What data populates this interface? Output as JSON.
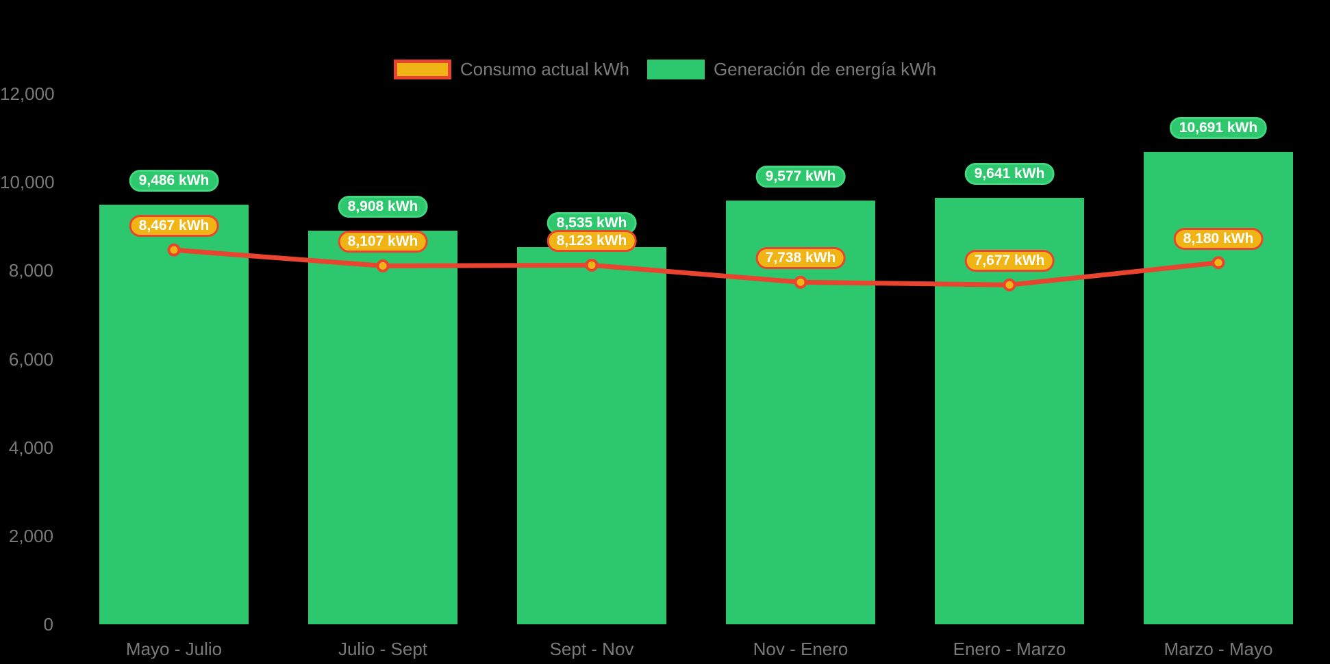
{
  "legend": {
    "position": "top"
  },
  "chart_data": {
    "type": "bar",
    "combo": "bar series with overlaid line series",
    "title": "",
    "categories": [
      "Mayo - Julio",
      "Julio - Sept",
      "Sept - Nov",
      "Nov - Enero",
      "Enero - Marzo",
      "Marzo - Mayo"
    ],
    "series": [
      {
        "name": "Consumo actual kWh",
        "type": "line",
        "color": "#E84430",
        "marker_fill": "#F0B414",
        "values": [
          8467,
          8107,
          8123,
          7738,
          7677,
          8180
        ],
        "data_labels": [
          "8,467 kWh",
          "8,107 kWh",
          "8,123 kWh",
          "7,738 kWh",
          "7,677 kWh",
          "8,180 kWh"
        ]
      },
      {
        "name": "Generación de energía kWh",
        "type": "bar",
        "color": "#2DC86E",
        "values": [
          9486,
          8908,
          8535,
          9577,
          9641,
          10691
        ],
        "data_labels": [
          "9,486 kWh",
          "8,908 kWh",
          "8,535 kWh",
          "9,577 kWh",
          "9,641 kWh",
          "10,691 kWh"
        ]
      }
    ],
    "ylim": [
      0,
      12000
    ],
    "yticks": {
      "values": [
        0,
        2000,
        4000,
        6000,
        8000,
        10000,
        12000
      ],
      "labels": [
        "0",
        "2,000",
        "4,000",
        "6,000",
        "8,000",
        "10,000",
        "12,000"
      ]
    },
    "value_suffix": " kWh",
    "grid": false,
    "legend_position": "top",
    "background": "#000000",
    "axis_text_color": "#7A7A7A"
  }
}
